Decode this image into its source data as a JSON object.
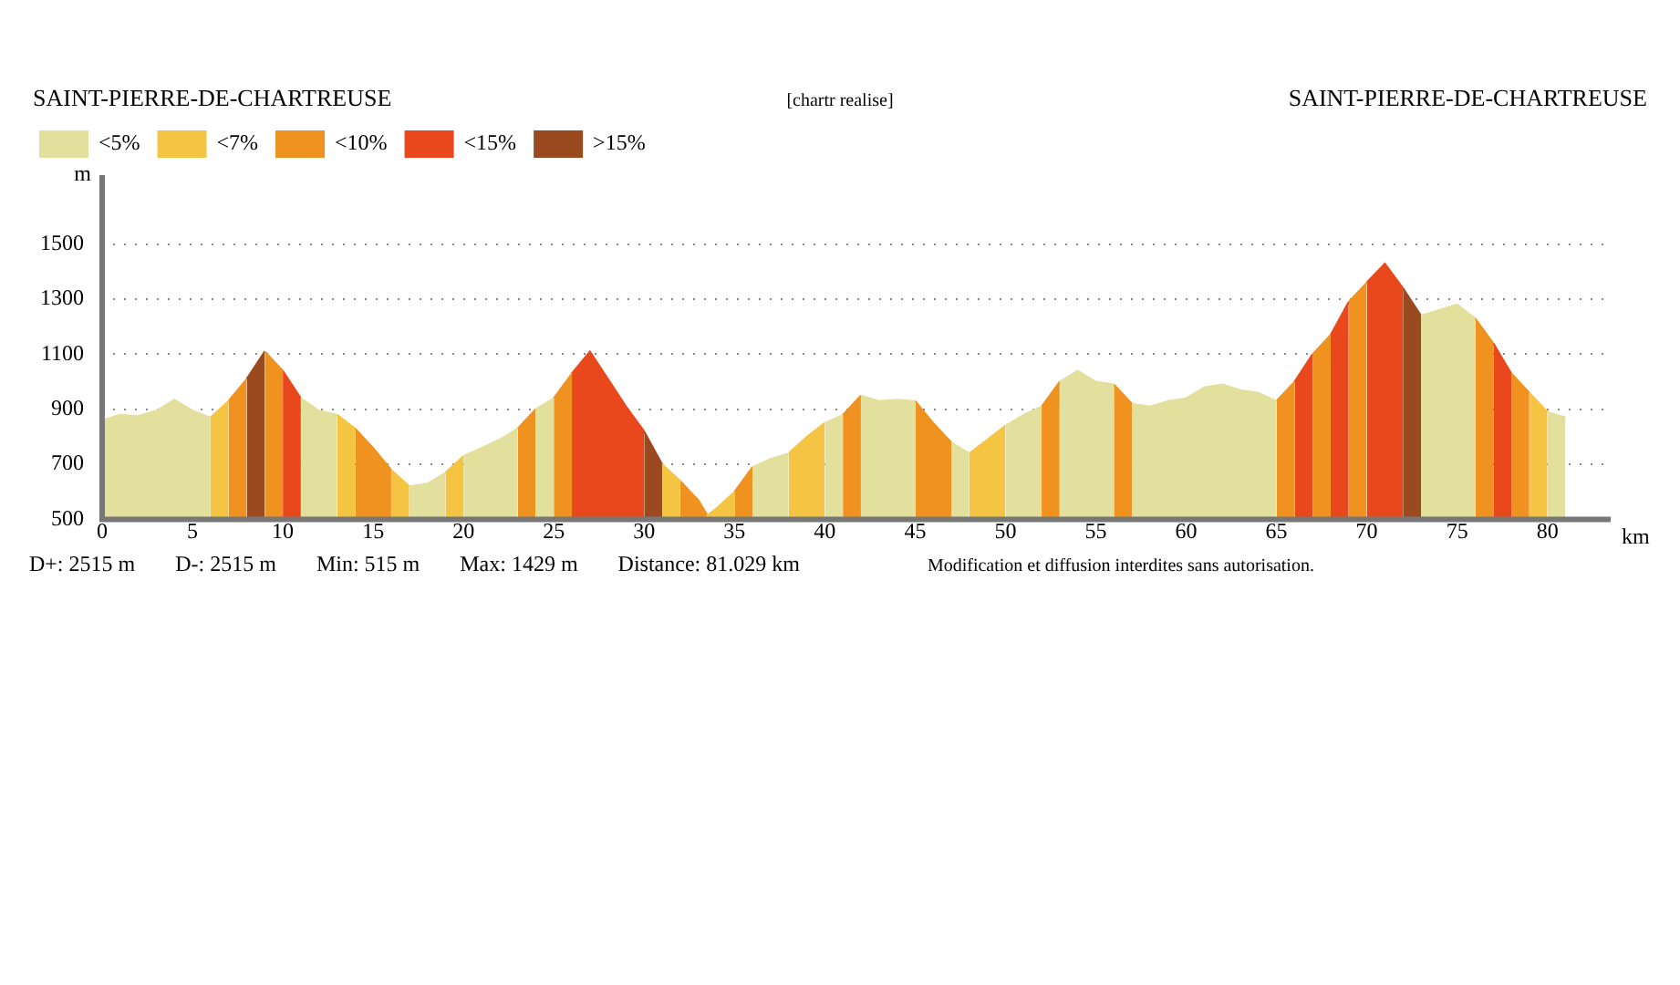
{
  "chart_data": {
    "type": "area",
    "title": "SAINT-PIERRE-DE-CHARTREUSE",
    "subtitle": "[chartr realise]",
    "xlabel": "km",
    "ylabel": "m",
    "annotations": [
      "SAINT-PIERRE-DE-CHARTREUSE",
      "D+: 2515 m",
      "D-: 2515 m",
      "Min: 515 m",
      "Max: 1429 m",
      "Distance: 81.029 km",
      "Modification et diffusion interdites sans autorisation."
    ],
    "xlim": [
      0,
      83.5
    ],
    "xticks": [
      0,
      5,
      10,
      15,
      20,
      25,
      30,
      35,
      40,
      45,
      50,
      55,
      60,
      65,
      70,
      75,
      80
    ],
    "ylim": [
      500,
      1750
    ],
    "yticks": [
      500,
      700,
      900,
      1100,
      1300,
      1500
    ],
    "grid": "y",
    "line_style": "dotted",
    "legend": "top left",
    "series": [
      {
        "name": "<5%",
        "color": "#e3df9c",
        "x": [
          0,
          1,
          2,
          3,
          4,
          5,
          6,
          null,
          11,
          12,
          13,
          null,
          17,
          18,
          19,
          null,
          20,
          21,
          22,
          23,
          null,
          24,
          25,
          null,
          36,
          37,
          38,
          null,
          40,
          41,
          null,
          42,
          43,
          44,
          45,
          null,
          47,
          48,
          null,
          50,
          51,
          52,
          null,
          53,
          54,
          55,
          56,
          null,
          57,
          58,
          59,
          60,
          61,
          62,
          63,
          64,
          65,
          null,
          73,
          74,
          75,
          76,
          null,
          80,
          81
        ],
        "values": [
          860,
          880,
          875,
          895,
          935,
          895,
          870,
          null,
          940,
          895,
          880,
          null,
          620,
          630,
          670,
          null,
          730,
          760,
          790,
          830,
          null,
          900,
          940,
          null,
          690,
          720,
          740,
          null,
          850,
          880,
          null,
          950,
          930,
          935,
          930,
          null,
          780,
          740,
          null,
          840,
          880,
          910,
          null,
          1000,
          1040,
          1000,
          990,
          null,
          920,
          910,
          930,
          940,
          980,
          990,
          970,
          960,
          930,
          null,
          1240,
          1260,
          1280,
          1230,
          null,
          890,
          870
        ]
      },
      {
        "name": "<7%",
        "color": "#f5c443",
        "x": [
          6,
          7,
          null,
          13,
          14,
          null,
          16,
          17,
          null,
          19,
          20,
          null,
          31,
          32,
          null,
          33.5,
          34,
          35,
          null,
          38,
          39,
          40,
          null,
          48,
          49,
          50,
          null,
          79,
          80
        ],
        "values": [
          870,
          930,
          null,
          880,
          830,
          null,
          680,
          620,
          null,
          670,
          730,
          null,
          700,
          640,
          null,
          515,
          540,
          600,
          null,
          740,
          800,
          850,
          null,
          740,
          790,
          840,
          null,
          960,
          890
        ]
      },
      {
        "name": "<10%",
        "color": "#f0921f",
        "x": [
          7,
          8,
          null,
          9,
          10,
          null,
          14,
          15,
          16,
          null,
          23,
          24,
          null,
          25,
          26,
          null,
          32,
          33,
          33.5,
          null,
          35,
          36,
          null,
          41,
          42,
          null,
          45,
          46,
          47,
          null,
          52,
          53,
          null,
          56,
          57,
          null,
          65,
          66,
          null,
          67,
          68,
          null,
          69,
          70,
          null,
          76,
          77,
          null,
          78,
          79
        ],
        "values": [
          930,
          1010,
          null,
          1110,
          1040,
          null,
          830,
          760,
          680,
          null,
          830,
          900,
          null,
          940,
          1030,
          null,
          640,
          570,
          515,
          null,
          600,
          690,
          null,
          880,
          950,
          null,
          930,
          850,
          780,
          null,
          910,
          1000,
          null,
          990,
          920,
          null,
          930,
          1000,
          null,
          1100,
          1170,
          null,
          1290,
          1360,
          null,
          1230,
          1140,
          null,
          1030,
          960
        ]
      },
      {
        "name": "<15%",
        "color": "#e8481b",
        "x": [
          10,
          11,
          null,
          26,
          27,
          28,
          29,
          30,
          null,
          66,
          67,
          null,
          68,
          69,
          null,
          70,
          71,
          72,
          null,
          77,
          78
        ],
        "values": [
          1040,
          940,
          null,
          1030,
          1110,
          1010,
          910,
          820,
          null,
          1000,
          1100,
          null,
          1170,
          1290,
          null,
          1360,
          1429,
          1340,
          null,
          1140,
          1030
        ]
      },
      {
        "name": ">15%",
        "color": "#9b4a20",
        "x": [
          8,
          9,
          null,
          30,
          31,
          null,
          72,
          73
        ],
        "values": [
          1010,
          1110,
          null,
          820,
          700,
          null,
          1340,
          1240
        ]
      }
    ]
  }
}
